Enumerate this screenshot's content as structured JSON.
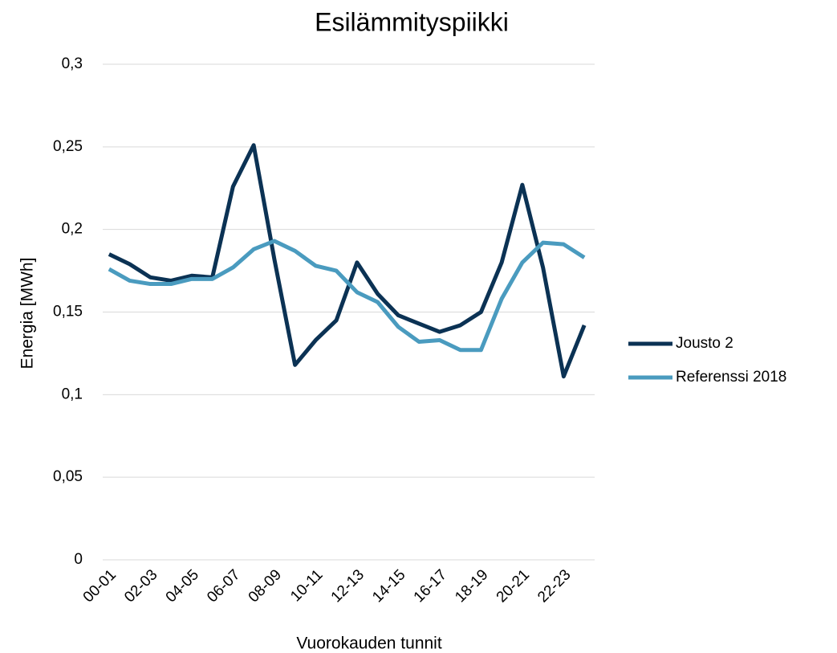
{
  "chart_data": {
    "type": "line",
    "title": "Esilämmityspiikki",
    "x_label": "Vuorokauden tunnit",
    "y_label": "Energia [MWh]",
    "categories": [
      "00-01",
      null,
      "02-03",
      null,
      "04-05",
      null,
      "06-07",
      null,
      "08-09",
      null,
      "10-11",
      null,
      "12-13",
      null,
      "14-15",
      null,
      "16-17",
      null,
      "18-19",
      null,
      "20-21",
      null,
      "22-23",
      null
    ],
    "series": [
      {
        "name": "Jousto 2",
        "color": "#0b3254",
        "values": [
          0.185,
          0.179,
          0.171,
          0.169,
          0.172,
          0.171,
          0.226,
          0.251,
          0.182,
          0.118,
          0.133,
          0.145,
          0.18,
          0.161,
          0.148,
          0.143,
          0.138,
          0.142,
          0.15,
          0.18,
          0.227,
          0.177,
          0.111,
          0.142
        ]
      },
      {
        "name": "Referenssi 2018",
        "color": "#4a9bbf",
        "values": [
          0.176,
          0.169,
          0.167,
          0.167,
          0.17,
          0.17,
          0.177,
          0.188,
          0.193,
          0.187,
          0.178,
          0.175,
          0.162,
          0.156,
          0.141,
          0.132,
          0.133,
          0.127,
          0.127,
          0.158,
          0.18,
          0.192,
          0.191,
          0.183
        ]
      }
    ],
    "ylim": [
      0,
      0.3
    ],
    "yticks": [
      0,
      {
        "value": 0.05,
        "label": "0,05"
      },
      {
        "value": 0.1,
        "label": "0,1"
      },
      {
        "value": 0.15,
        "label": "0,15"
      },
      {
        "value": 0.2,
        "label": "0,2"
      },
      {
        "value": 0.25,
        "label": "0,25"
      },
      {
        "value": 0.3,
        "label": "0,3"
      }
    ],
    "grid": true,
    "legend": "right"
  }
}
